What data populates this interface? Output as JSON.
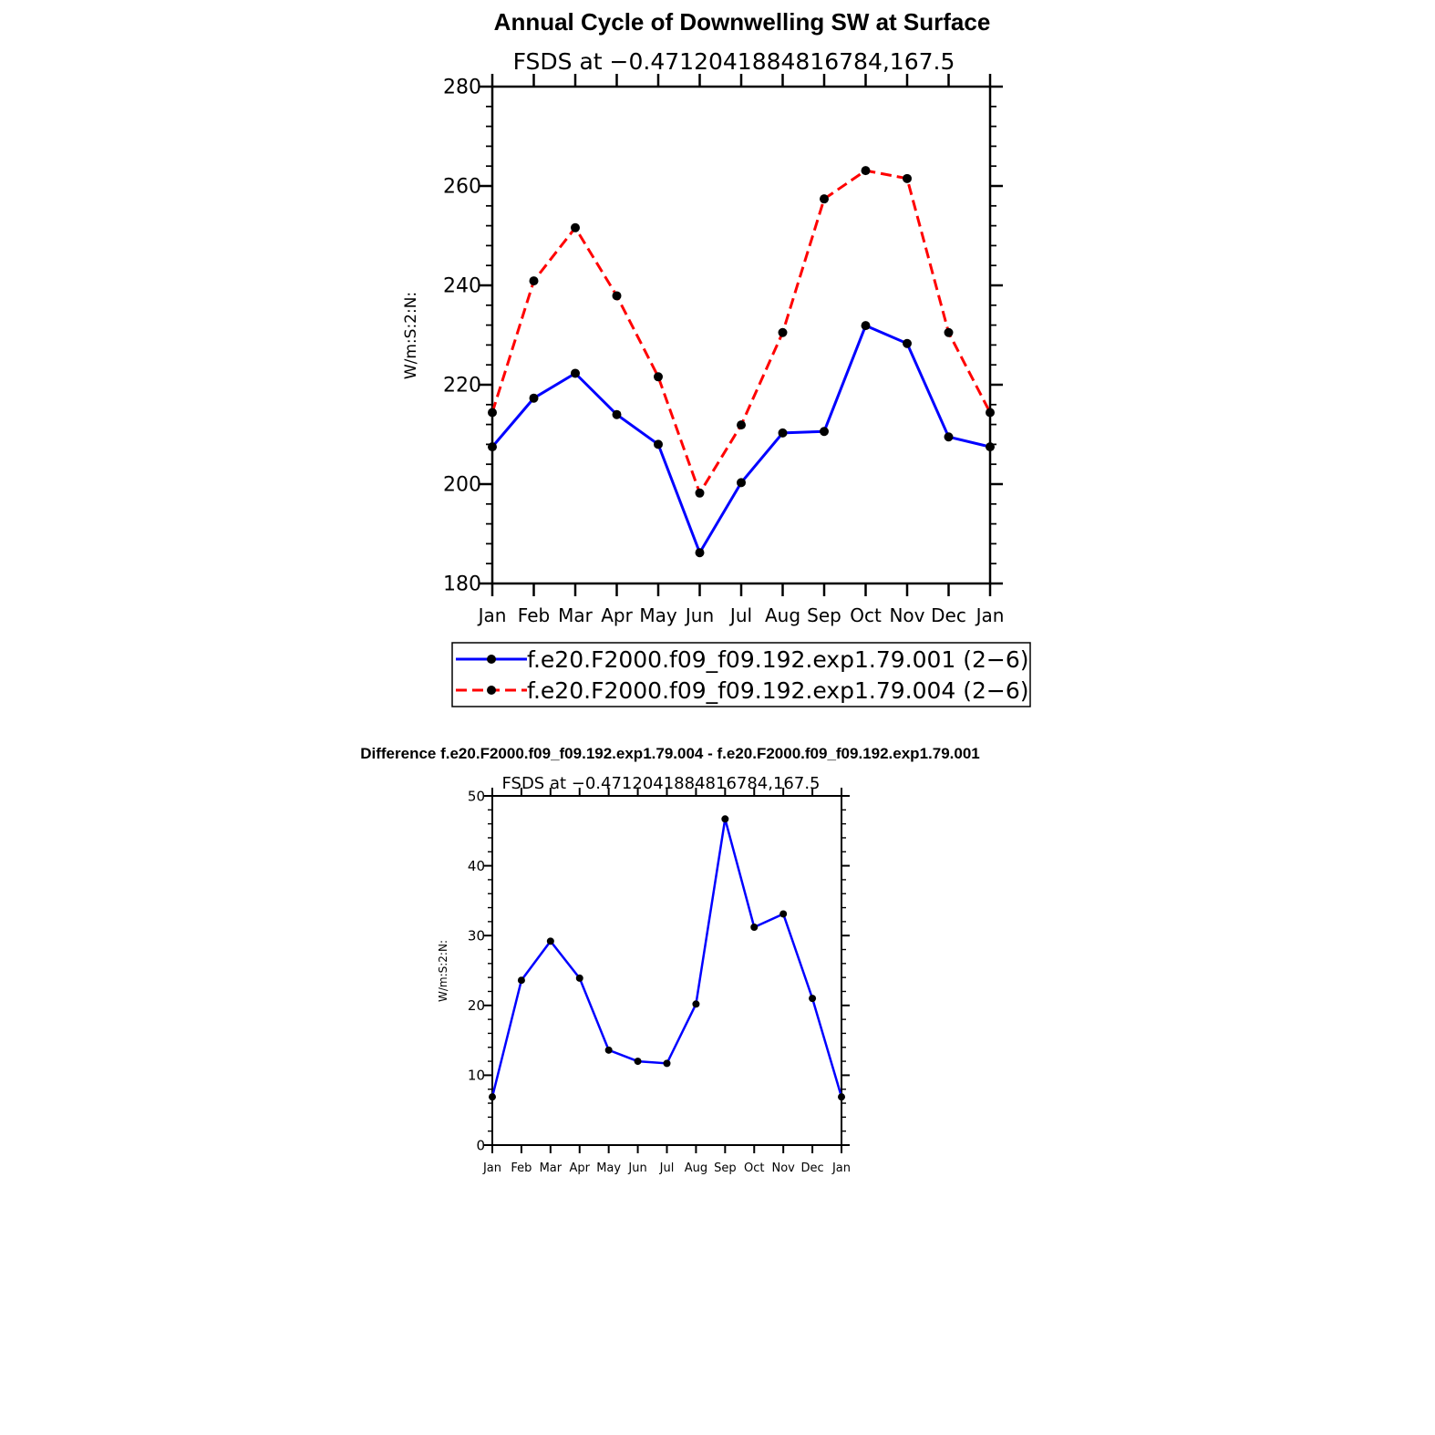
{
  "chart_data": [
    {
      "type": "line",
      "title": "Annual Cycle of Downwelling SW at Surface",
      "subtitle": "FSDS at −0.4712041884816784,167.5",
      "xlabel": "",
      "ylabel": "W/m:S:2:N:",
      "categories": [
        "Jan",
        "Feb",
        "Mar",
        "Apr",
        "May",
        "Jun",
        "Jul",
        "Aug",
        "Sep",
        "Oct",
        "Nov",
        "Dec",
        "Jan"
      ],
      "ylim": [
        180,
        280
      ],
      "yticks": [
        "180",
        "200",
        "220",
        "240",
        "260",
        "280"
      ],
      "series": [
        {
          "name": "f.e20.F2000.f09_f09.192.exp1.79.001 (2−6)",
          "color": "#0000ff",
          "dashed": false,
          "values": [
            207.5,
            217.3,
            222.3,
            214.0,
            208.0,
            186.2,
            200.3,
            210.3,
            210.6,
            231.9,
            228.3,
            209.5,
            207.5
          ]
        },
        {
          "name": "f.e20.F2000.f09_f09.192.exp1.79.004 (2−6)",
          "color": "#ff0000",
          "dashed": true,
          "values": [
            214.4,
            240.9,
            251.6,
            237.9,
            221.6,
            198.2,
            211.9,
            230.5,
            257.4,
            263.1,
            261.5,
            230.5,
            214.4
          ]
        }
      ],
      "legend": "bottom",
      "grid": false
    },
    {
      "type": "line",
      "title": "Difference f.e20.F2000.f09_f09.192.exp1.79.004 - f.e20.F2000.f09_f09.192.exp1.79.001",
      "subtitle": "FSDS at −0.4712041884816784,167.5",
      "xlabel": "",
      "ylabel": "W/m:S:2:N:",
      "categories": [
        "Jan",
        "Feb",
        "Mar",
        "Apr",
        "May",
        "Jun",
        "Jul",
        "Aug",
        "Sep",
        "Oct",
        "Nov",
        "Dec",
        "Jan"
      ],
      "ylim": [
        0,
        50
      ],
      "yticks": [
        "0",
        "10",
        "20",
        "30",
        "40",
        "50"
      ],
      "series": [
        {
          "color": "#0000ff",
          "dashed": false,
          "values": [
            6.9,
            23.6,
            29.2,
            23.9,
            13.6,
            12.0,
            11.7,
            20.2,
            46.7,
            31.2,
            33.1,
            21.0,
            6.9
          ]
        }
      ],
      "grid": false
    }
  ]
}
